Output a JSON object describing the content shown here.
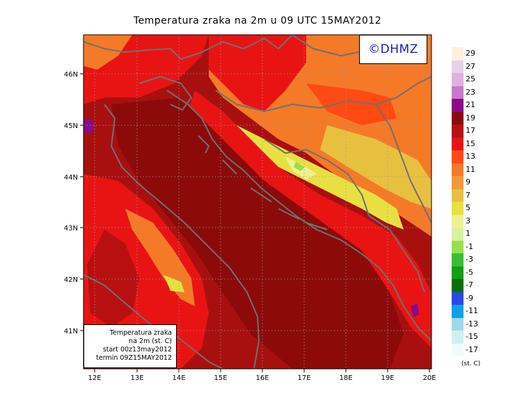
{
  "title": "Temperatura zraka na 2m u 09 UTC 15MAY2012",
  "logo": "©DHMZ",
  "info": {
    "line1": "Temperatura zraka",
    "line2": "na 2m (st. C)",
    "line3": "start 00z13may2012",
    "line4": "termin 09Z15MAY2012"
  },
  "axes": {
    "lon_ticks": [
      "12E",
      "13E",
      "14E",
      "15E",
      "16E",
      "17E",
      "18E",
      "19E",
      "20E"
    ],
    "lat_ticks": [
      "46N",
      "45N",
      "44N",
      "43N",
      "42N",
      "41N"
    ]
  },
  "legend": {
    "units": "(st. C)",
    "levels": [
      {
        "label": "29",
        "color": "#fff0e0"
      },
      {
        "label": "27",
        "color": "#e8d0e8"
      },
      {
        "label": "25",
        "color": "#e0b0e0"
      },
      {
        "label": "23",
        "color": "#c878c8"
      },
      {
        "label": "21",
        "color": "#8a0a8a"
      },
      {
        "label": "19",
        "color": "#8c0a0a"
      },
      {
        "label": "17",
        "color": "#b81010"
      },
      {
        "label": "15",
        "color": "#e81414"
      },
      {
        "label": "13",
        "color": "#ff4a14"
      },
      {
        "label": "11",
        "color": "#f47a28"
      },
      {
        "label": "9",
        "color": "#f09a38"
      },
      {
        "label": "7",
        "color": "#e8c040"
      },
      {
        "label": "5",
        "color": "#e8e040"
      },
      {
        "label": "3",
        "color": "#f0f090"
      },
      {
        "label": "1",
        "color": "#d8f0a0"
      },
      {
        "label": "-1",
        "color": "#98e048"
      },
      {
        "label": "-3",
        "color": "#38c030"
      },
      {
        "label": "-5",
        "color": "#10a010"
      },
      {
        "label": "-7",
        "color": "#087008"
      },
      {
        "label": "-9",
        "color": "#2848e8"
      },
      {
        "label": "-11",
        "color": "#10a0e8"
      },
      {
        "label": "-13",
        "color": "#a0d8e8"
      },
      {
        "label": "-15",
        "color": "#d0f0f0"
      },
      {
        "label": "-17",
        "color": "#f0fbfb"
      }
    ]
  }
}
